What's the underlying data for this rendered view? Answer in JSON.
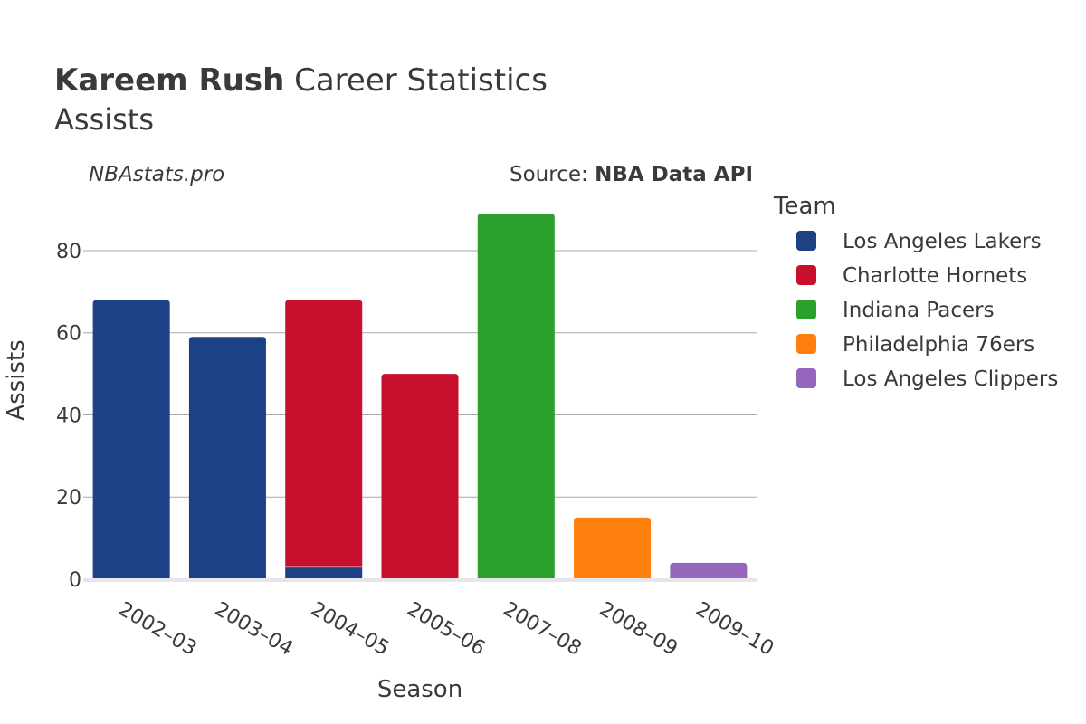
{
  "title": {
    "player": "Kareem Rush",
    "rest": " Career Statistics"
  },
  "subtitle": "Assists",
  "credit": "NBAstats.pro",
  "source": {
    "label": "Source: ",
    "value": "NBA Data API"
  },
  "legend_title": "Team",
  "chart_data": {
    "type": "bar",
    "stacked": true,
    "xlabel": "Season",
    "ylabel": "Assists",
    "ylim": [
      0,
      93
    ],
    "yticks": [
      0,
      20,
      40,
      60,
      80
    ],
    "categories": [
      "2002–03",
      "2003–04",
      "2004–05",
      "2005–06",
      "2007–08",
      "2008–09",
      "2009–10"
    ],
    "grid": true,
    "legend_position": "right",
    "series": [
      {
        "name": "Los Angeles Lakers",
        "color": "#1c4185",
        "values": [
          68,
          59,
          3,
          0,
          0,
          0,
          0
        ]
      },
      {
        "name": "Charlotte Hornets",
        "color": "#c8102e",
        "values": [
          0,
          0,
          65,
          50,
          0,
          0,
          0
        ]
      },
      {
        "name": "Indiana Pacers",
        "color": "#2ca02c",
        "values": [
          0,
          0,
          0,
          0,
          89,
          0,
          0
        ]
      },
      {
        "name": "Philadelphia 76ers",
        "color": "#ff7f0e",
        "values": [
          0,
          0,
          0,
          0,
          0,
          15,
          0
        ]
      },
      {
        "name": "Los Angeles Clippers",
        "color": "#9467bd",
        "values": [
          0,
          0,
          0,
          0,
          0,
          0,
          4
        ]
      }
    ]
  }
}
